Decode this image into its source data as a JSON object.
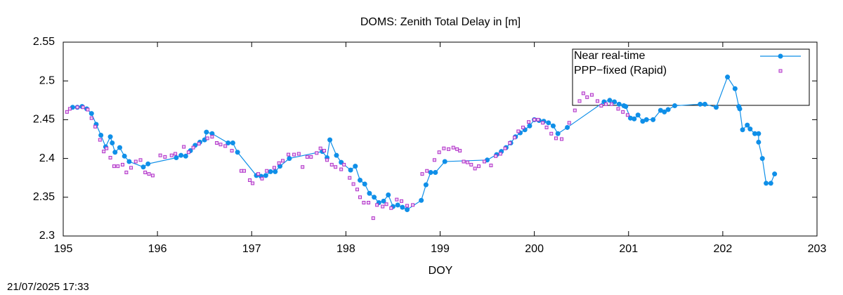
{
  "chart_data": {
    "type": "line",
    "title": "DOMS: Zenith Total Delay in [m]",
    "x_label": "DOY",
    "timestamp": "21/07/2025 17:33",
    "xlim": [
      195,
      203
    ],
    "xticks": [
      195,
      196,
      197,
      198,
      199,
      200,
      201,
      202,
      203
    ],
    "ylim": [
      2.3,
      2.55
    ],
    "yticks": [
      2.3,
      2.35,
      2.4,
      2.45,
      2.5,
      2.55
    ],
    "legend": "top-right",
    "grid": false,
    "series": [
      {
        "name": "Near real-time",
        "color": "#0f8fe8",
        "style": "linespoints",
        "x": [
          195.1,
          195.15,
          195.2,
          195.25,
          195.3,
          195.35,
          195.4,
          195.45,
          195.5,
          195.52,
          195.55,
          195.6,
          195.65,
          195.7,
          195.85,
          195.9,
          196.2,
          196.25,
          196.3,
          196.35,
          196.4,
          196.45,
          196.5,
          196.52,
          196.58,
          196.75,
          196.8,
          196.85,
          197.05,
          197.1,
          197.15,
          197.2,
          197.25,
          197.3,
          197.4,
          197.75,
          197.8,
          197.83,
          197.9,
          197.95,
          198.05,
          198.1,
          198.15,
          198.2,
          198.25,
          198.3,
          198.35,
          198.4,
          198.45,
          198.5,
          198.55,
          198.6,
          198.65,
          198.8,
          198.85,
          198.9,
          198.95,
          199.05,
          199.5,
          199.6,
          199.65,
          199.7,
          199.75,
          199.8,
          199.85,
          199.9,
          199.95,
          200.0,
          200.05,
          200.1,
          200.15,
          200.2,
          200.25,
          200.35,
          200.74,
          200.8,
          200.85,
          200.9,
          200.95,
          200.97,
          201.02,
          201.06,
          201.1,
          201.15,
          201.19,
          201.26,
          201.34,
          201.38,
          201.42,
          201.49,
          201.76,
          201.81,
          201.93,
          202.05,
          202.13,
          202.17,
          202.18,
          202.21,
          202.26,
          202.29,
          202.34,
          202.38,
          202.38,
          202.42,
          202.46,
          202.51,
          202.55
        ],
        "values": [
          2.466,
          2.466,
          2.467,
          2.464,
          2.458,
          2.444,
          2.43,
          2.415,
          2.428,
          2.42,
          2.408,
          2.414,
          2.403,
          2.396,
          2.389,
          2.393,
          2.401,
          2.404,
          2.403,
          2.41,
          2.417,
          2.421,
          2.424,
          2.434,
          2.432,
          2.42,
          2.42,
          2.408,
          2.378,
          2.377,
          2.378,
          2.383,
          2.383,
          2.39,
          2.4,
          2.409,
          2.401,
          2.424,
          2.404,
          2.395,
          2.385,
          2.39,
          2.372,
          2.367,
          2.355,
          2.35,
          2.343,
          2.345,
          2.353,
          2.338,
          2.34,
          2.337,
          2.334,
          2.346,
          2.366,
          2.382,
          2.382,
          2.396,
          2.398,
          2.405,
          2.409,
          2.414,
          2.42,
          2.428,
          2.433,
          2.437,
          2.442,
          2.45,
          2.449,
          2.448,
          2.446,
          2.442,
          2.432,
          2.44,
          2.473,
          2.475,
          2.473,
          2.47,
          2.468,
          2.467,
          2.452,
          2.451,
          2.456,
          2.448,
          2.45,
          2.45,
          2.462,
          2.46,
          2.463,
          2.468,
          2.47,
          2.47,
          2.466,
          2.505,
          2.49,
          2.467,
          2.464,
          2.437,
          2.443,
          2.438,
          2.432,
          2.432,
          2.421,
          2.4,
          2.368,
          2.368,
          2.38
        ]
      },
      {
        "name": "PPP−fixed (Rapid)",
        "color": "#b030c8",
        "style": "points",
        "x": [
          195.04,
          195.07,
          195.15,
          195.21,
          195.26,
          195.3,
          195.34,
          195.39,
          195.43,
          195.46,
          195.5,
          195.54,
          195.58,
          195.63,
          195.67,
          195.72,
          195.77,
          195.82,
          195.87,
          195.91,
          195.95,
          196.03,
          196.08,
          196.15,
          196.19,
          196.28,
          196.33,
          196.38,
          196.44,
          196.53,
          196.58,
          196.63,
          196.67,
          196.72,
          196.79,
          196.89,
          196.92,
          196.98,
          197.01,
          197.07,
          197.11,
          197.16,
          197.24,
          197.29,
          197.33,
          197.39,
          197.45,
          197.5,
          197.54,
          197.59,
          197.63,
          197.69,
          197.73,
          197.77,
          197.8,
          197.85,
          197.89,
          197.95,
          197.98,
          198.04,
          198.08,
          198.12,
          198.15,
          198.19,
          198.24,
          198.29,
          198.33,
          198.39,
          198.43,
          198.48,
          198.54,
          198.59,
          198.65,
          198.71,
          198.81,
          198.86,
          198.94,
          198.99,
          199.04,
          199.09,
          199.14,
          199.18,
          199.21,
          199.25,
          199.29,
          199.33,
          199.37,
          199.41,
          199.47,
          199.54,
          199.59,
          199.64,
          199.69,
          199.74,
          199.79,
          199.83,
          199.88,
          199.94,
          200.0,
          200.04,
          200.09,
          200.13,
          200.18,
          200.23,
          200.29,
          200.37,
          200.43,
          200.48,
          200.52,
          200.56,
          200.61,
          200.67,
          200.71,
          200.76,
          200.82,
          200.89,
          200.94,
          200.99
        ],
        "values": [
          2.46,
          2.464,
          2.466,
          2.466,
          2.463,
          2.452,
          2.441,
          2.424,
          2.409,
          2.413,
          2.401,
          2.39,
          2.39,
          2.392,
          2.382,
          2.388,
          2.396,
          2.398,
          2.382,
          2.38,
          2.378,
          2.404,
          2.402,
          2.404,
          2.406,
          2.415,
          2.408,
          2.414,
          2.419,
          2.426,
          2.428,
          2.42,
          2.418,
          2.416,
          2.41,
          2.384,
          2.384,
          2.372,
          2.368,
          2.38,
          2.374,
          2.384,
          2.388,
          2.394,
          2.397,
          2.405,
          2.405,
          2.406,
          2.389,
          2.402,
          2.402,
          2.407,
          2.413,
          2.41,
          2.398,
          2.392,
          2.389,
          2.386,
          2.392,
          2.375,
          2.367,
          2.36,
          2.35,
          2.343,
          2.343,
          2.323,
          2.34,
          2.338,
          2.341,
          2.336,
          2.347,
          2.345,
          2.339,
          2.34,
          2.38,
          2.384,
          2.398,
          2.408,
          2.413,
          2.412,
          2.414,
          2.412,
          2.41,
          2.396,
          2.395,
          2.392,
          2.387,
          2.39,
          2.396,
          2.391,
          2.403,
          2.406,
          2.413,
          2.42,
          2.427,
          2.435,
          2.44,
          2.447,
          2.45,
          2.45,
          2.446,
          2.44,
          2.432,
          2.426,
          2.425,
          2.446,
          2.462,
          2.474,
          2.484,
          2.479,
          2.482,
          2.474,
          2.468,
          2.47,
          2.47,
          2.464,
          2.46,
          2.456
        ]
      }
    ]
  }
}
